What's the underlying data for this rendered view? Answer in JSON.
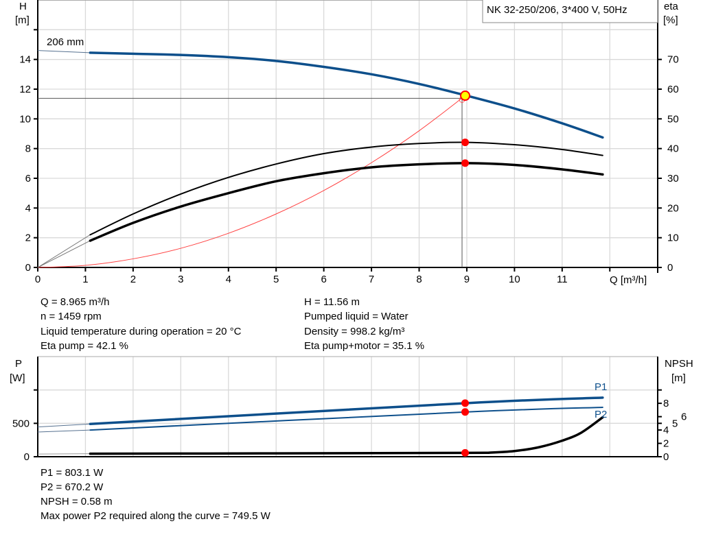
{
  "legend_box": {
    "text": "NK 32-250/206, 3*400 V, 50Hz"
  },
  "colors": {
    "head": "#0d4f8b",
    "power": "#0d4f8b",
    "efficiency": "#000000",
    "npsh": "#000000",
    "system_curve": "#ff4040",
    "duty_point": "#ff0000",
    "operating_point_fill": "#ffff00"
  },
  "info_top": {
    "left": [
      "Q = 8.965 m³/h",
      "n = 1459 rpm",
      "Liquid temperature during operation = 20 °C",
      "Eta pump = 42.1 %"
    ],
    "right": [
      "H = 11.56 m",
      "Pumped liquid = Water",
      "Density = 998.2 kg/m³",
      "Eta pump+motor = 35.1 %"
    ]
  },
  "info_bottom": [
    "P1 = 803.1 W",
    "P2 = 670.2 W",
    "NPSH = 0.58 m",
    "Max power P2 required along the curve = 749.5 W"
  ],
  "chart_data": [
    {
      "type": "line",
      "xlabel": "Q [m³/h]",
      "ylabel_left": [
        "H",
        "[m]"
      ],
      "ylabel_right": [
        "eta",
        "[%]"
      ],
      "xlim": [
        0,
        13
      ],
      "ylim_left": [
        0,
        18
      ],
      "ylim_right": [
        0,
        90
      ],
      "x_ticks": [
        0,
        1,
        2,
        3,
        4,
        5,
        6,
        7,
        8,
        9,
        10,
        11
      ],
      "y_ticks_left": [
        0,
        2,
        4,
        6,
        8,
        10,
        12,
        14
      ],
      "y_ticks_right": [
        0,
        10,
        20,
        30,
        40,
        50,
        60,
        70
      ],
      "grid": true,
      "curve_label": "206 mm",
      "series": [
        {
          "axis": "left",
          "style": "head",
          "x": [
            0,
            1.1,
            2,
            3,
            4,
            5,
            6,
            7,
            8,
            9,
            10,
            11,
            11.85
          ],
          "y": [
            14.6,
            14.45,
            14.38,
            14.3,
            14.15,
            13.9,
            13.5,
            13.0,
            12.35,
            11.56,
            10.7,
            9.7,
            8.75
          ]
        },
        {
          "axis": "right",
          "style": "eta_pump",
          "x": [
            0,
            1.1,
            2,
            3,
            4,
            5,
            6,
            7,
            8,
            9,
            10,
            11,
            11.85
          ],
          "y": [
            0,
            11,
            18,
            24.7,
            30.3,
            34.8,
            38.3,
            40.5,
            41.7,
            42.1,
            41.3,
            39.7,
            37.7
          ]
        },
        {
          "axis": "right",
          "style": "eta_pump_motor",
          "x": [
            0,
            1.1,
            2,
            3,
            4,
            5,
            6,
            7,
            8,
            9,
            10,
            11,
            11.85
          ],
          "y": [
            0,
            9,
            15,
            20.5,
            25,
            29,
            31.7,
            33.7,
            34.7,
            35.1,
            34.5,
            33,
            31.3
          ]
        },
        {
          "axis": "left",
          "style": "system",
          "x": [
            0,
            1,
            2,
            3,
            4,
            5,
            6,
            7,
            8,
            8.965
          ],
          "y": [
            0,
            0.14,
            0.58,
            1.29,
            2.3,
            3.6,
            5.18,
            7.05,
            9.2,
            11.56
          ]
        }
      ],
      "duty_points": [
        {
          "axis": "left",
          "x": 8.965,
          "y": 11.56,
          "kind": "operating"
        },
        {
          "axis": "right",
          "x": 8.965,
          "y": 42.1
        },
        {
          "axis": "right",
          "x": 8.965,
          "y": 35.1
        }
      ],
      "crosshair": {
        "x": 8.9,
        "y": 11.38
      }
    },
    {
      "type": "line",
      "ylabel_left": [
        "P",
        "[W]"
      ],
      "ylabel_right": [
        "NPSH",
        "[m]"
      ],
      "xlim": [
        0,
        13
      ],
      "ylim_left": [
        0,
        1500
      ],
      "ylim_right": [
        0,
        15
      ],
      "y_ticks_left": [
        0,
        500
      ],
      "y_ticks_right": [
        0,
        2,
        4,
        5,
        6,
        8
      ],
      "grid": true,
      "series": [
        {
          "name": "P1",
          "axis": "left",
          "style": "p1",
          "x": [
            0,
            1.1,
            9,
            11.85
          ],
          "y": [
            445,
            490,
            803.1,
            885
          ]
        },
        {
          "name": "P2",
          "axis": "left",
          "style": "p2",
          "x": [
            0,
            1.1,
            9,
            11.85
          ],
          "y": [
            370,
            400,
            670.2,
            740
          ]
        },
        {
          "axis": "right",
          "style": "npsh",
          "x": [
            0,
            1.1,
            5,
            9,
            9.5,
            10,
            10.5,
            11,
            11.4,
            11.85
          ],
          "y": [
            0.4,
            0.45,
            0.5,
            0.58,
            0.62,
            0.85,
            1.4,
            2.4,
            3.6,
            5.9
          ]
        }
      ],
      "duty_points": [
        {
          "axis": "left",
          "x": 8.965,
          "y": 803.1
        },
        {
          "axis": "left",
          "x": 8.965,
          "y": 670.2
        },
        {
          "axis": "right",
          "x": 8.965,
          "y": 0.58
        }
      ]
    }
  ]
}
